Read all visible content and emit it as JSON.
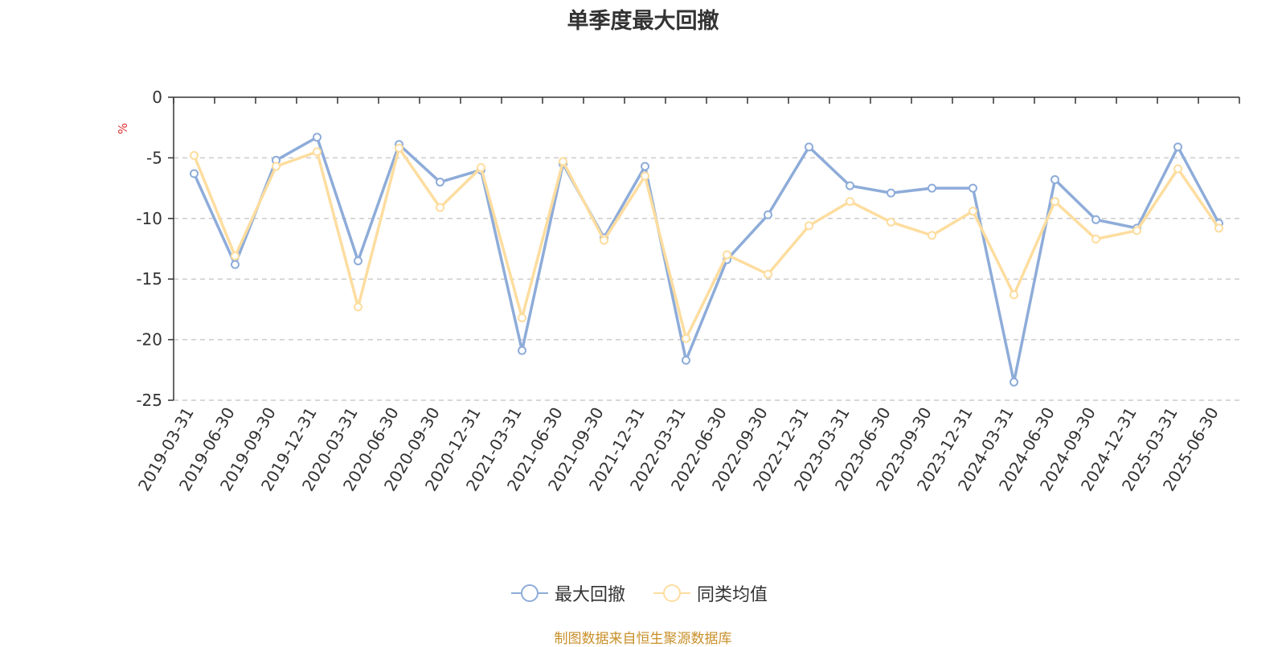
{
  "chart_data": {
    "type": "line",
    "title": "单季度最大回撤",
    "ylabel": "%",
    "xlabel": "",
    "ylim": [
      -25,
      0
    ],
    "yticks": [
      0,
      -5,
      -10,
      -15,
      -20,
      -25
    ],
    "grid": true,
    "legend_position": "bottom-center",
    "categories": [
      "2019-03-31",
      "2019-06-30",
      "2019-09-30",
      "2019-12-31",
      "2020-03-31",
      "2020-06-30",
      "2020-09-30",
      "2020-12-31",
      "2021-03-31",
      "2021-06-30",
      "2021-09-30",
      "2021-12-31",
      "2022-03-31",
      "2022-06-30",
      "2022-09-30",
      "2022-12-31",
      "2023-03-31",
      "2023-06-30",
      "2023-09-30",
      "2023-12-31",
      "2024-03-31",
      "2024-06-30",
      "2024-09-30",
      "2024-12-31",
      "2025-03-31",
      "2025-06-30"
    ],
    "series": [
      {
        "name": "最大回撤",
        "color": "#8eacd9",
        "values": [
          -6.3,
          -13.8,
          -5.2,
          -3.3,
          -13.5,
          -3.9,
          -7.0,
          -6.0,
          -20.9,
          -5.5,
          -11.6,
          -5.7,
          -21.7,
          -13.4,
          -9.7,
          -4.1,
          -7.3,
          -7.9,
          -7.5,
          -7.5,
          -23.5,
          -6.8,
          -10.1,
          -10.8,
          -4.1,
          -10.4
        ]
      },
      {
        "name": "同类均值",
        "color": "#fddd9f",
        "values": [
          -4.8,
          -13.1,
          -5.7,
          -4.5,
          -17.3,
          -4.2,
          -9.1,
          -5.8,
          -18.2,
          -5.3,
          -11.8,
          -6.5,
          -19.9,
          -13.0,
          -14.6,
          -10.6,
          -8.6,
          -10.3,
          -11.4,
          -9.4,
          -16.3,
          -8.6,
          -11.7,
          -11.0,
          -5.9,
          -10.8
        ]
      }
    ]
  },
  "source_note": "制图数据来自恒生聚源数据库"
}
